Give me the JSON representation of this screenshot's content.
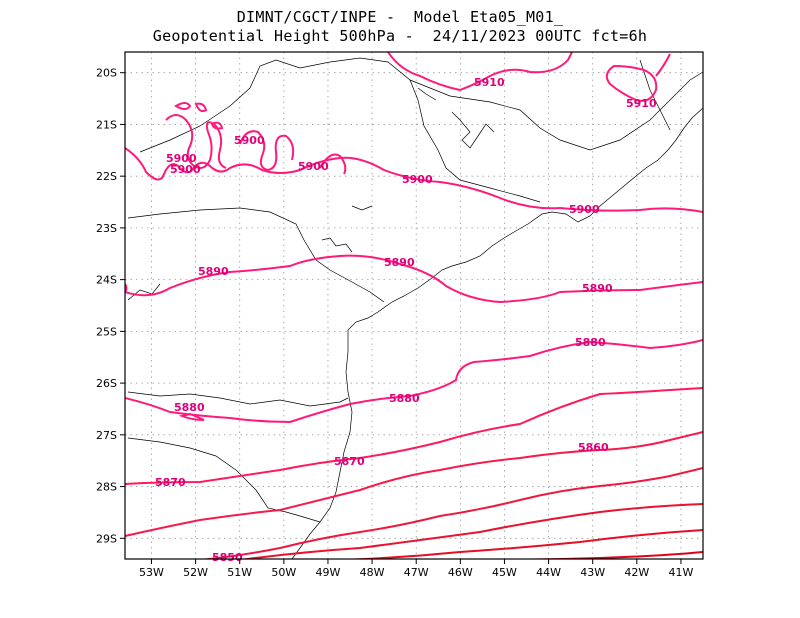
{
  "title": {
    "line1": "DIMNT/CGCT/INPE -  Model Eta05_M01_",
    "line2": "Geopotential Height 500hPa -  24/11/2023 00UTC fct=6h"
  },
  "axes": {
    "x_ticks": [
      "53W",
      "52W",
      "51W",
      "50W",
      "49W",
      "48W",
      "47W",
      "46W",
      "45W",
      "44W",
      "43W",
      "42W",
      "41W"
    ],
    "y_ticks": [
      "20S",
      "21S",
      "22S",
      "23S",
      "24S",
      "25S",
      "26S",
      "27S",
      "28S",
      "29S"
    ],
    "lon_range": [
      -53.6,
      -40.5
    ],
    "lat_range": [
      -29.4,
      -19.6
    ]
  },
  "colors": {
    "contour": "#ff1a7a",
    "contour_dark": "#e8003a",
    "label": "#e0007a",
    "coast": "#000000",
    "grid": "#9a9a9a"
  },
  "contour_labels": {
    "c5910a": "5910",
    "c5910b": "5910",
    "c5900a": "5900",
    "c5900b": "5900",
    "c5900c": "5900",
    "c5900d": "5900",
    "c5900e": "5900",
    "c5890a": "5890",
    "c5890b": "5890",
    "c5890c": "5890",
    "c5880a": "5880",
    "c5880b": "5880",
    "c5880c": "5880",
    "c5870a": "5870",
    "c5870b": "5870",
    "c5860a": "5860",
    "c5850a": "5850"
  },
  "chart_data": {
    "type": "map-contour",
    "variable": "Geopotential Height 500hPa",
    "levels": [
      5850,
      5860,
      5870,
      5880,
      5890,
      5900,
      5910
    ],
    "grid": true
  }
}
